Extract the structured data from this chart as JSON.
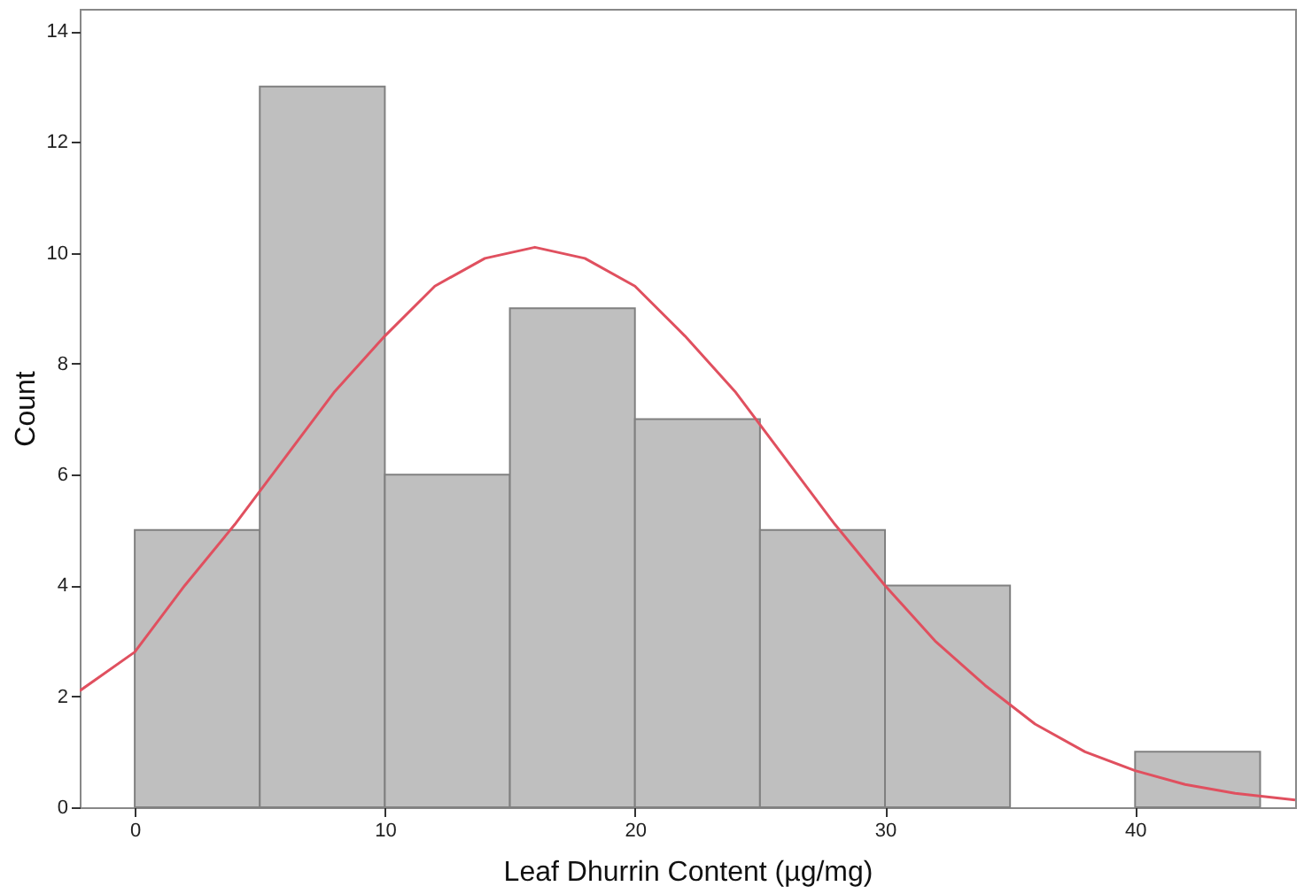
{
  "chart_data": {
    "type": "histogram",
    "xlabel": "Leaf Dhurrin Content (µg/mg)",
    "ylabel": "Count",
    "bins": [
      0,
      5,
      10,
      15,
      20,
      25,
      30,
      35,
      40,
      45
    ],
    "values": [
      5,
      13,
      6,
      9,
      7,
      5,
      4,
      0,
      1
    ],
    "color": "#bfbfbf",
    "series": [
      {
        "type": "line",
        "color": "#e0505f",
        "x": [
          -2.2,
          0,
          2,
          4,
          6,
          8,
          10,
          12,
          14,
          16,
          18,
          20,
          22,
          24,
          26,
          28,
          30,
          32,
          34,
          36,
          38,
          40,
          42,
          44,
          46.4
        ],
        "values": [
          2.1,
          2.8,
          4.0,
          5.1,
          6.3,
          7.5,
          8.5,
          9.4,
          9.9,
          10.1,
          9.9,
          9.4,
          8.5,
          7.5,
          6.3,
          5.1,
          4.0,
          3.0,
          2.2,
          1.5,
          1.0,
          0.66,
          0.41,
          0.25,
          0.13
        ]
      }
    ],
    "xlim": [
      -2.2,
      46.4
    ],
    "ylim": [
      0,
      14.4
    ],
    "xticks": [
      0,
      10,
      20,
      30,
      40
    ],
    "yticks": [
      0,
      2,
      4,
      6,
      8,
      10,
      12,
      14
    ]
  }
}
